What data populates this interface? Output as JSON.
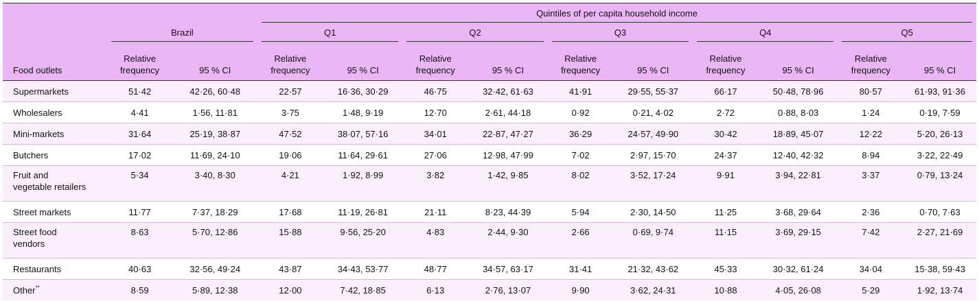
{
  "header": {
    "group_title": "Quintiles of per capita household income",
    "col_first": "Food outlets",
    "brazil": "Brazil",
    "quintiles": [
      "Q1",
      "Q2",
      "Q3",
      "Q4",
      "Q5"
    ],
    "freq_label_1": "Relative",
    "freq_label_2": "frequency",
    "ci_label": "95 % CI"
  },
  "rows": [
    {
      "label": "Supermarkets",
      "label2": "",
      "values": [
        "51·42",
        "42·26, 60·48",
        "22·57",
        "16·36, 30·29",
        "46·75",
        "32·42, 61·63",
        "41·91",
        "29·55, 55·37",
        "66·17",
        "50·48, 78·96",
        "80·57",
        "61·93, 91·36"
      ]
    },
    {
      "label": "Wholesalers",
      "label2": "",
      "values": [
        "4·41",
        "1·56, 11·81",
        "3·75",
        "1·48, 9·19",
        "12·70",
        "2·61, 44·18",
        "0·92",
        "0·21, 4·02",
        "2·72",
        "0·88, 8·03",
        "1·24",
        "0·19, 7·59"
      ]
    },
    {
      "label": "Mini-markets",
      "label2": "",
      "values": [
        "31·64",
        "25·19, 38·87",
        "47·52",
        "38·07, 57·16",
        "34·01",
        "22·87, 47·27",
        "36·29",
        "24·57, 49·90",
        "30·42",
        "18·89, 45·07",
        "12·22",
        "5·20, 26·13"
      ]
    },
    {
      "label": "Butchers",
      "label2": "",
      "values": [
        "17·02",
        "11·69, 24·10",
        "19·06",
        "11·64, 29·61",
        "27·06",
        "12·98, 47·99",
        "7·02",
        "2·97, 15·70",
        "24·37",
        "12·40, 42·32",
        "8·94",
        "3·22, 22·49"
      ]
    },
    {
      "label": "Fruit and",
      "label2": "vegetable retailers",
      "values": [
        "5·34",
        "3·40, 8·30",
        "4·21",
        "1·92, 8·99",
        "3·82",
        "1·42, 9·85",
        "8·02",
        "3·52, 17·24",
        "9·91",
        "3·94, 22·81",
        "3·37",
        "0·79, 13·24"
      ]
    },
    {
      "label": "Street markets",
      "label2": "",
      "values": [
        "11·77",
        "7·37, 18·29",
        "17·68",
        "11·19, 26·81",
        "21·11",
        "8·23, 44·39",
        "5·94",
        "2·30, 14·50",
        "11·25",
        "3·68, 29·64",
        "2·36",
        "0·70, 7·63"
      ]
    },
    {
      "label": "Street food",
      "label2": "vendors",
      "values": [
        "8·63",
        "5·70, 12·86",
        "15·88",
        "9·56, 25·20",
        "4·83",
        "2·44, 9·30",
        "2·66",
        "0·69, 9·74",
        "11·15",
        "3·69, 29·15",
        "7·42",
        "2·27, 21·69"
      ]
    },
    {
      "label": "Restaurants",
      "label2": "",
      "values": [
        "40·63",
        "32·56, 49·24",
        "43·87",
        "34·43, 53·77",
        "48·77",
        "34·57, 63·17",
        "31·41",
        "21·32, 43·62",
        "45·33",
        "30·32, 61·24",
        "34·04",
        "15·38, 59·43"
      ]
    },
    {
      "label": "Other",
      "label2": "",
      "sup": "**",
      "values": [
        "8·59",
        "5·89, 12·38",
        "12·00",
        "7·42, 18·85",
        "6·13",
        "2·76, 13·07",
        "9·90",
        "3·62, 24·31",
        "10·88",
        "4·05, 26·08",
        "5·29",
        "1·92, 13·74"
      ]
    }
  ]
}
